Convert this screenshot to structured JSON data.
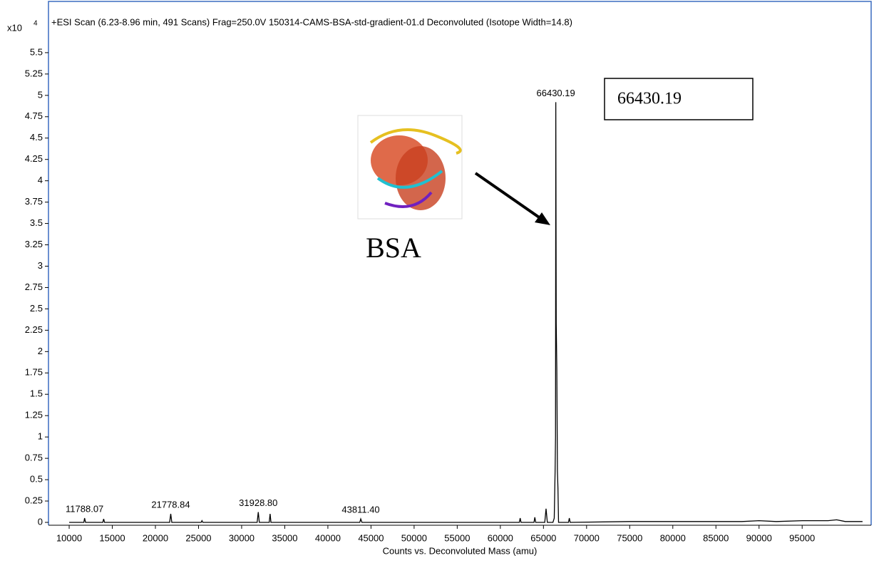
{
  "chart_data": {
    "type": "line",
    "title": "+ESI Scan (6.23-8.96 min, 491 Scans) Frag=250.0V 150314-CAMS-BSA-std-gradient-01.d  Deconvoluted (Isotope Width=14.8)",
    "y_unit": "x10",
    "y_unit_exp": "4",
    "xlabel": "Counts vs. Deconvoluted Mass (amu)",
    "color": "#000000",
    "x": [
      10000,
      11700,
      11788.07,
      11900,
      13900,
      14000,
      14100,
      21650,
      21778.84,
      21900,
      25300,
      25400,
      25500,
      31800,
      31928.8,
      32050,
      33200,
      33300,
      33400,
      43700,
      43811.4,
      43950,
      62200,
      62300,
      62400,
      63900,
      64000,
      64100,
      65150,
      65300,
      65450,
      66100,
      66250,
      66350,
      66400,
      66430.19,
      66480,
      66550,
      66620,
      66680,
      66750,
      67900,
      68000,
      68100,
      75000,
      88000,
      90000,
      92000,
      95000,
      98000,
      99000,
      100000,
      102000
    ],
    "values": [
      0,
      0,
      0.05,
      0,
      0,
      0.04,
      0,
      0,
      0.1,
      0,
      0,
      0.02,
      0,
      0,
      0.12,
      0,
      0,
      0.1,
      0,
      0,
      0.04,
      0,
      0,
      0.05,
      0,
      0,
      0.06,
      0,
      0,
      0.16,
      0,
      0,
      0.05,
      0.6,
      1.0,
      4.92,
      2.33,
      1.8,
      0.6,
      0.4,
      0,
      0,
      0.05,
      0,
      0.01,
      0.01,
      0.02,
      0.01,
      0.02,
      0.02,
      0.03,
      0.01,
      0.01
    ],
    "annotations": [
      {
        "x": 11788.07,
        "y": 0.05,
        "label": "11788.07"
      },
      {
        "x": 21778.84,
        "y": 0.1,
        "label": "21778.84"
      },
      {
        "x": 31928.8,
        "y": 0.12,
        "label": "31928.80"
      },
      {
        "x": 43811.4,
        "y": 0.04,
        "label": "43811.40"
      },
      {
        "x": 66430.19,
        "y": 4.92,
        "label": "66430.19"
      }
    ],
    "callout": "66430.19",
    "protein_label": "BSA",
    "xlim": [
      7600,
      103000
    ],
    "ylim": [
      0,
      6.1
    ],
    "xticks": [
      10000,
      15000,
      20000,
      25000,
      30000,
      35000,
      40000,
      45000,
      50000,
      55000,
      60000,
      65000,
      70000,
      75000,
      80000,
      85000,
      90000,
      95000
    ],
    "yticks": [
      0,
      0.25,
      0.5,
      0.75,
      1,
      1.25,
      1.5,
      1.75,
      2,
      2.25,
      2.5,
      2.75,
      3,
      3.25,
      3.5,
      3.75,
      4,
      4.25,
      4.5,
      4.75,
      5,
      5.25,
      5.5
    ],
    "grid": false
  }
}
